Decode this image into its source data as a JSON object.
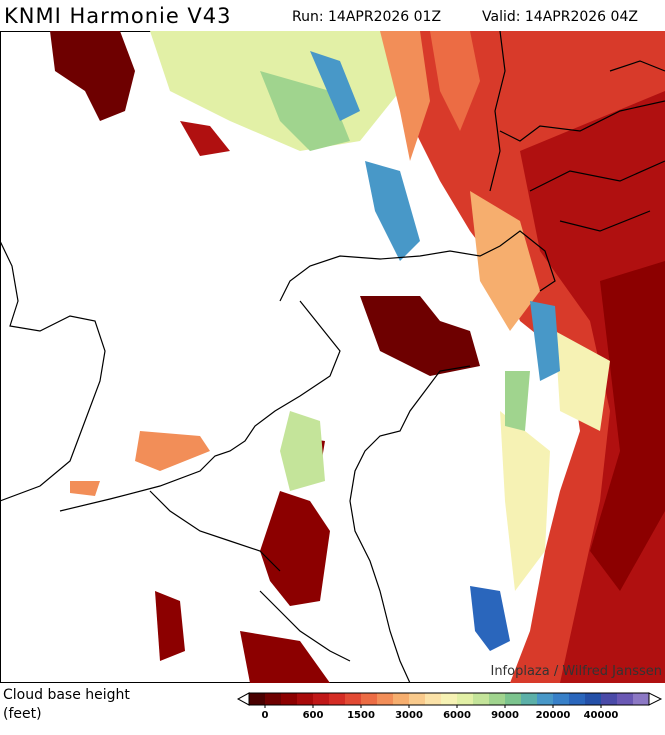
{
  "header": {
    "title": "KNMI Harmonie V43",
    "run": "Run: 14APR2026 01Z",
    "valid": "Valid: 14APR2026 04Z"
  },
  "map": {
    "credit": "Infoplaza / Wilfred Janssen"
  },
  "legend": {
    "label": "Cloud base height (feet)",
    "colors": [
      "#4a0000",
      "#6e0000",
      "#8c0000",
      "#a80a0a",
      "#c01818",
      "#d42c24",
      "#e24a34",
      "#ec6c44",
      "#f28e58",
      "#f6ae6e",
      "#f9ca8c",
      "#fbe2a8",
      "#f6f2b4",
      "#e2f0a6",
      "#c4e49a",
      "#a0d48e",
      "#7cc48e",
      "#5cb0a8",
      "#4898c8",
      "#3880c8",
      "#2a66bc",
      "#2450a8",
      "#4a4aa8",
      "#6a58b4",
      "#8c78c4"
    ],
    "ticks": [
      0,
      600,
      1500,
      3000,
      6000,
      9000,
      20000,
      40000
    ]
  }
}
